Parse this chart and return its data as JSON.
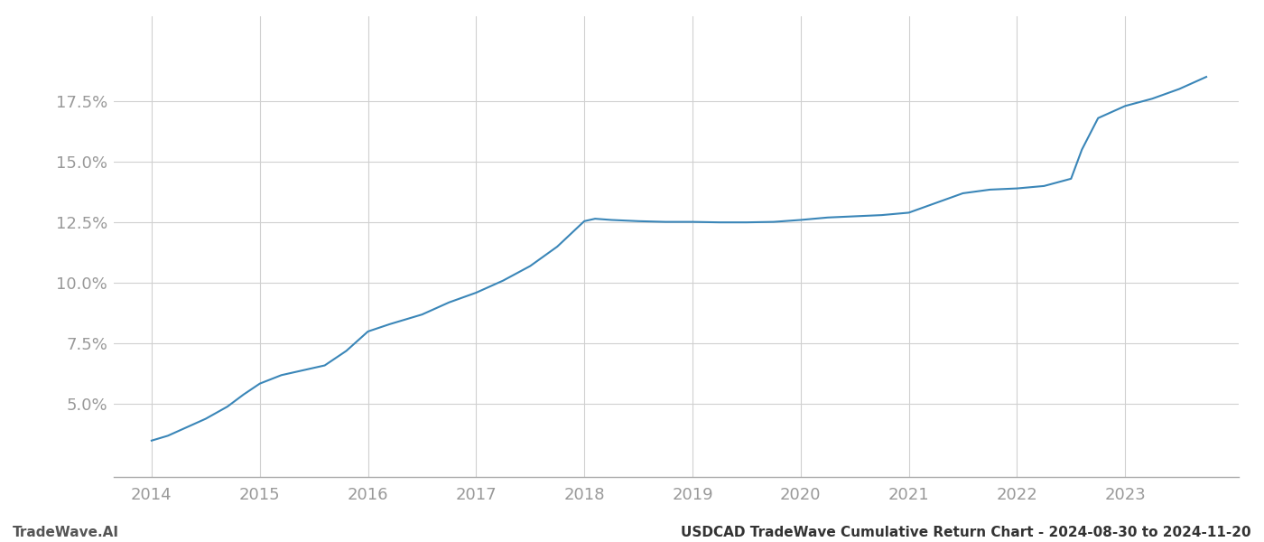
{
  "x_years": [
    2014.0,
    2014.15,
    2014.3,
    2014.5,
    2014.7,
    2014.85,
    2015.0,
    2015.2,
    2015.4,
    2015.6,
    2015.8,
    2016.0,
    2016.2,
    2016.5,
    2016.75,
    2017.0,
    2017.25,
    2017.5,
    2017.75,
    2018.0,
    2018.1,
    2018.25,
    2018.5,
    2018.75,
    2019.0,
    2019.25,
    2019.5,
    2019.75,
    2020.0,
    2020.25,
    2020.5,
    2020.75,
    2021.0,
    2021.25,
    2021.5,
    2021.75,
    2022.0,
    2022.25,
    2022.5,
    2022.6,
    2022.75,
    2023.0,
    2023.25,
    2023.5,
    2023.75
  ],
  "y_values": [
    3.5,
    3.7,
    4.0,
    4.4,
    4.9,
    5.4,
    5.85,
    6.2,
    6.4,
    6.6,
    7.2,
    8.0,
    8.3,
    8.7,
    9.2,
    9.6,
    10.1,
    10.7,
    11.5,
    12.55,
    12.65,
    12.6,
    12.55,
    12.52,
    12.52,
    12.5,
    12.5,
    12.52,
    12.6,
    12.7,
    12.75,
    12.8,
    12.9,
    13.3,
    13.7,
    13.85,
    13.9,
    14.0,
    14.3,
    15.5,
    16.8,
    17.3,
    17.6,
    18.0,
    18.5
  ],
  "line_color": "#3a86b8",
  "line_width": 1.5,
  "background_color": "#ffffff",
  "grid_color": "#d0d0d0",
  "tick_color": "#999999",
  "footer_left": "TradeWave.AI",
  "footer_right": "USDCAD TradeWave Cumulative Return Chart - 2024-08-30 to 2024-11-20",
  "xlim": [
    2013.65,
    2024.05
  ],
  "ylim": [
    2.0,
    21.0
  ],
  "yticks": [
    5.0,
    7.5,
    10.0,
    12.5,
    15.0,
    17.5
  ],
  "xticks": [
    2014,
    2015,
    2016,
    2017,
    2018,
    2019,
    2020,
    2021,
    2022,
    2023
  ],
  "tick_fontsize": 13,
  "footer_fontsize": 11
}
